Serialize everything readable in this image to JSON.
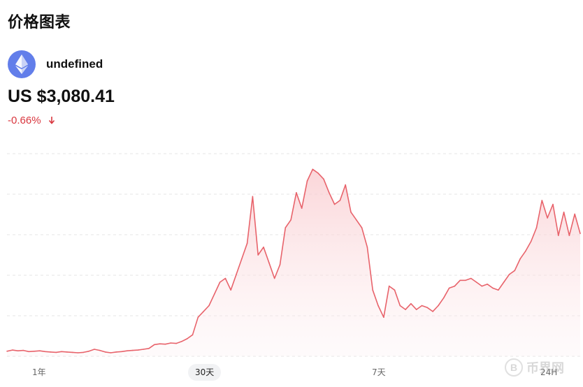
{
  "header": {
    "title": "价格图表"
  },
  "coin": {
    "name": "undefined",
    "logo_icon": "ethereum-icon",
    "logo_color": "#627eea"
  },
  "price": {
    "display": "US $3,080.41"
  },
  "change": {
    "percent": "-0.66%",
    "direction_icon": "arrow-down-icon",
    "color": "#d9363e"
  },
  "tabs": [
    {
      "label": "1年",
      "active": false
    },
    {
      "label": "30天",
      "active": true
    },
    {
      "label": "7天",
      "active": false
    },
    {
      "label": "24H",
      "active": false
    }
  ],
  "watermark": {
    "symbol": "B",
    "text": "币界网"
  },
  "chart_data": {
    "type": "area",
    "line_color": "#e8636b",
    "fill_color": "#fde4e6",
    "grid": true,
    "series": [
      {
        "values": [
          1.3,
          1.6,
          1.4,
          1.5,
          1.2,
          1.3,
          1.4,
          1.2,
          1.1,
          1.0,
          1.2,
          1.1,
          1.0,
          0.9,
          1.0,
          1.3,
          1.8,
          1.5,
          1.1,
          0.9,
          1.1,
          1.2,
          1.4,
          1.5,
          1.6,
          1.8,
          2.0,
          3.0,
          3.2,
          3.1,
          3.4,
          3.3,
          3.8,
          4.5,
          5.5,
          10.0,
          11.5,
          13.0,
          16.0,
          19.0,
          20.0,
          17.0,
          21.0,
          25.0,
          29.0,
          41.0,
          26.0,
          28.0,
          24.0,
          20.0,
          23.5,
          33.0,
          35.0,
          42.0,
          38.0,
          45.0,
          48.0,
          47.0,
          45.5,
          42.0,
          39.0,
          40.0,
          44.0,
          37.0,
          35.0,
          33.0,
          28.0,
          17.0,
          13.0,
          10.0,
          18.0,
          17.0,
          13.0,
          12.0,
          13.5,
          12.0,
          13.0,
          12.5,
          11.5,
          13.0,
          15.0,
          17.5,
          18.0,
          19.5,
          19.5,
          20.0,
          19.0,
          18.0,
          18.5,
          17.5,
          17.0,
          19.0,
          21.0,
          22.0,
          25.0,
          27.0,
          29.5,
          33.0,
          40.0,
          35.5,
          39.0,
          31.0,
          37.0,
          31.0,
          36.5,
          31.5
        ]
      }
    ],
    "ylim": [
      0,
      52
    ]
  }
}
